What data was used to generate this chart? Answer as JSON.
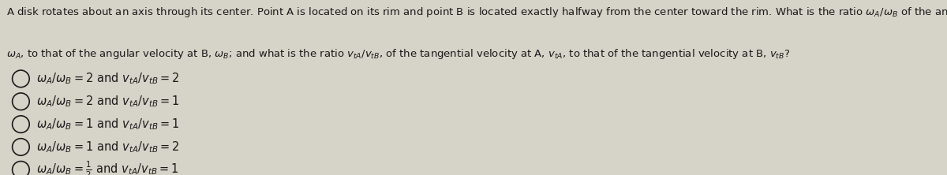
{
  "bg_color": "#d6d3c8",
  "text_color": "#1a1a1a",
  "q1": "A disk rotates about an axis through its center. Point A is located on its rim and point B is located exactly halfway from the center toward the rim. What is the ratio $\\omega_A/\\omega_B$ of the angular velocity at A",
  "q2": "$\\omega_A$, to that of the angular velocity at B, $\\omega_B$; and what is the ratio $v_{tA}/v_{tB}$, of the tangential velocity at A, $v_{tA}$, to that of the tangential velocity at B, $v_{tB}$?",
  "options": [
    "$\\omega_A/\\omega_B = 2$ and $v_{tA}/v_{tB} = 2$",
    "$\\omega_A/\\omega_B = 2$ and $v_{tA}/v_{tB} = 1$",
    "$\\omega_A/\\omega_B = 1$ and $v_{tA}/v_{tB} = 1$",
    "$\\omega_A/\\omega_B = 1$ and $v_{tA}/v_{tB} = 2$",
    "$\\omega_A/\\omega_B = \\frac{1}{2}$ and $v_{tA}/v_{tB} = 1$"
  ],
  "q_fontsize": 9.5,
  "opt_fontsize": 10.5,
  "figsize": [
    12.0,
    2.22
  ],
  "dpi": 100
}
